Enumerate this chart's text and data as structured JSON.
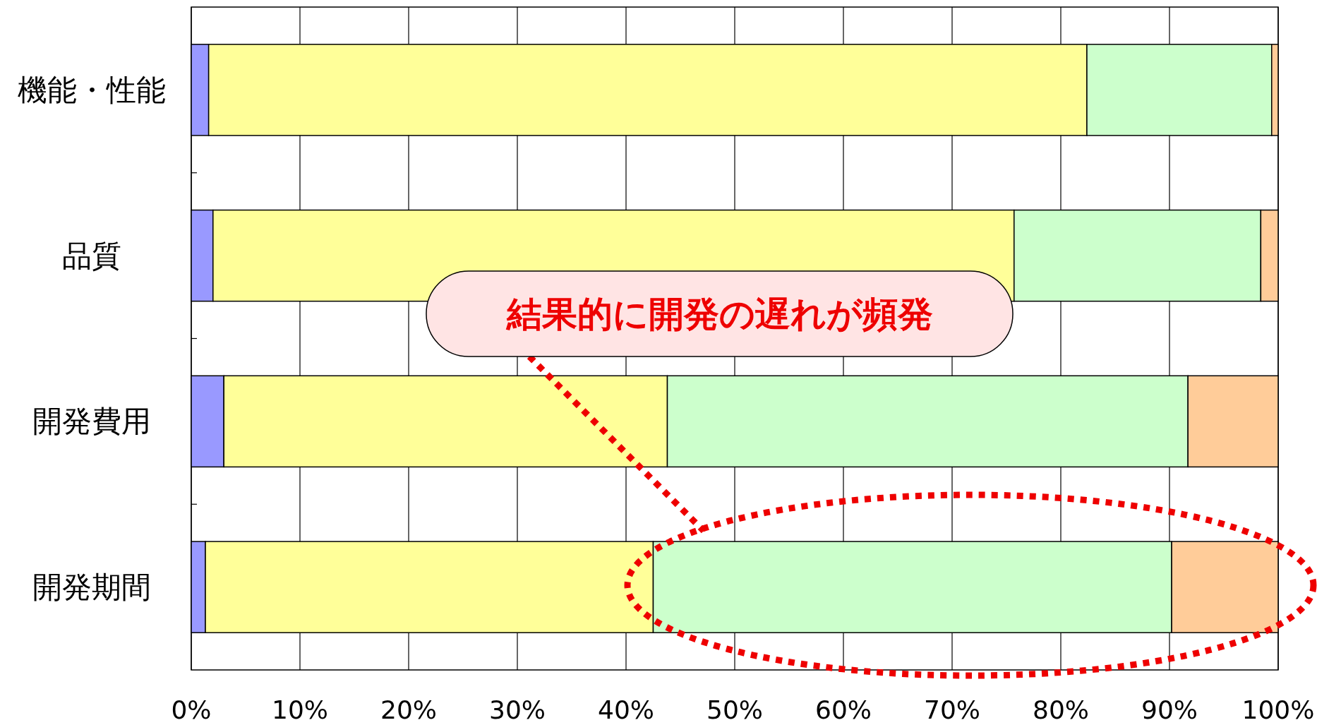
{
  "chart_data": {
    "type": "bar",
    "orientation": "horizontal",
    "stacked": true,
    "categories": [
      "機能・性能",
      "品質",
      "開発費用",
      "開発期間"
    ],
    "series": [
      {
        "color": "#9999ff",
        "values": [
          1.6,
          2.0,
          3.0,
          1.3
        ]
      },
      {
        "color": "#ffff99",
        "values": [
          80.8,
          73.7,
          40.8,
          41.2
        ]
      },
      {
        "color": "#ccffcc",
        "values": [
          17.0,
          22.7,
          47.9,
          47.7
        ]
      },
      {
        "color": "#ffcc99",
        "values": [
          0.6,
          1.6,
          8.3,
          9.8
        ]
      }
    ],
    "xlim": [
      0,
      100
    ],
    "xticks": [
      {
        "value": 0,
        "label": "0%"
      },
      {
        "value": 10,
        "label": "10%"
      },
      {
        "value": 20,
        "label": "20%"
      },
      {
        "value": 30,
        "label": "30%"
      },
      {
        "value": 40,
        "label": "40%"
      },
      {
        "value": 50,
        "label": "50%"
      },
      {
        "value": 60,
        "label": "60%"
      },
      {
        "value": 70,
        "label": "70%"
      },
      {
        "value": 80,
        "label": "80%"
      },
      {
        "value": 90,
        "label": "90%"
      },
      {
        "value": 100,
        "label": "100%"
      }
    ],
    "grid": "x",
    "annotations": [
      "結果的に開発の遅れが頻発"
    ]
  }
}
